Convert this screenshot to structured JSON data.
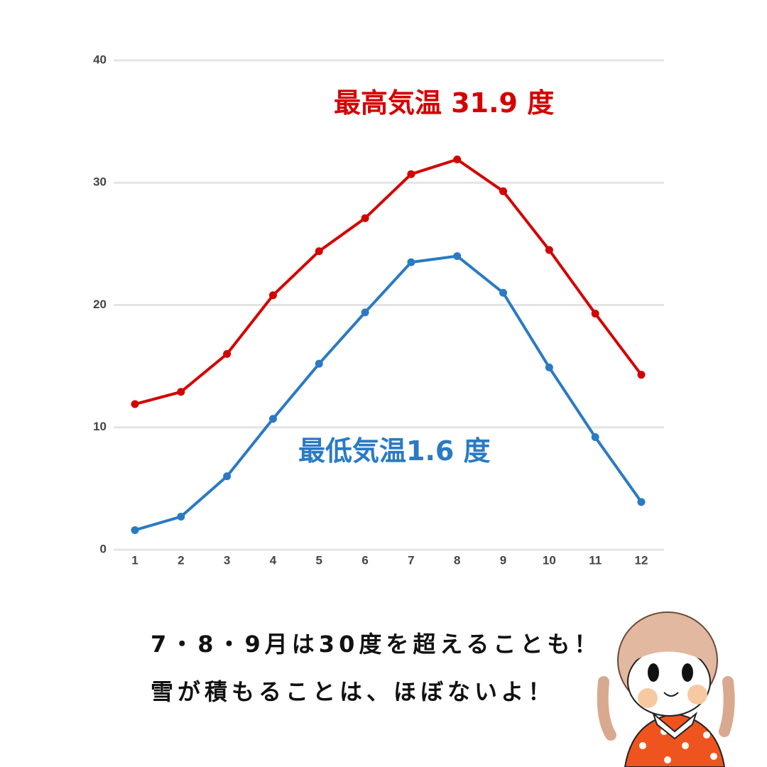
{
  "chart_data": {
    "type": "line",
    "categories": [
      "1",
      "2",
      "3",
      "4",
      "5",
      "6",
      "7",
      "8",
      "9",
      "10",
      "11",
      "12"
    ],
    "series": [
      {
        "color": "#d40000",
        "values": [
          11.9,
          12.9,
          16.0,
          20.8,
          24.4,
          27.1,
          30.7,
          31.9,
          29.3,
          24.5,
          19.3,
          14.3
        ]
      },
      {
        "color": "#2a7ac4",
        "values": [
          1.6,
          2.7,
          6.0,
          10.7,
          15.2,
          19.4,
          23.5,
          24.0,
          21.0,
          14.9,
          9.2,
          3.9
        ]
      }
    ],
    "ylim": [
      0,
      40
    ],
    "yticks": [
      0,
      10,
      20,
      30,
      40
    ],
    "grid": true
  },
  "annotations": [
    "最高気温 31.9 度",
    "最低気温1.6 度"
  ],
  "caption": [
    "7・8・9月は30度を超えることも！",
    "雪が積もることは、ほぼないよ！"
  ]
}
